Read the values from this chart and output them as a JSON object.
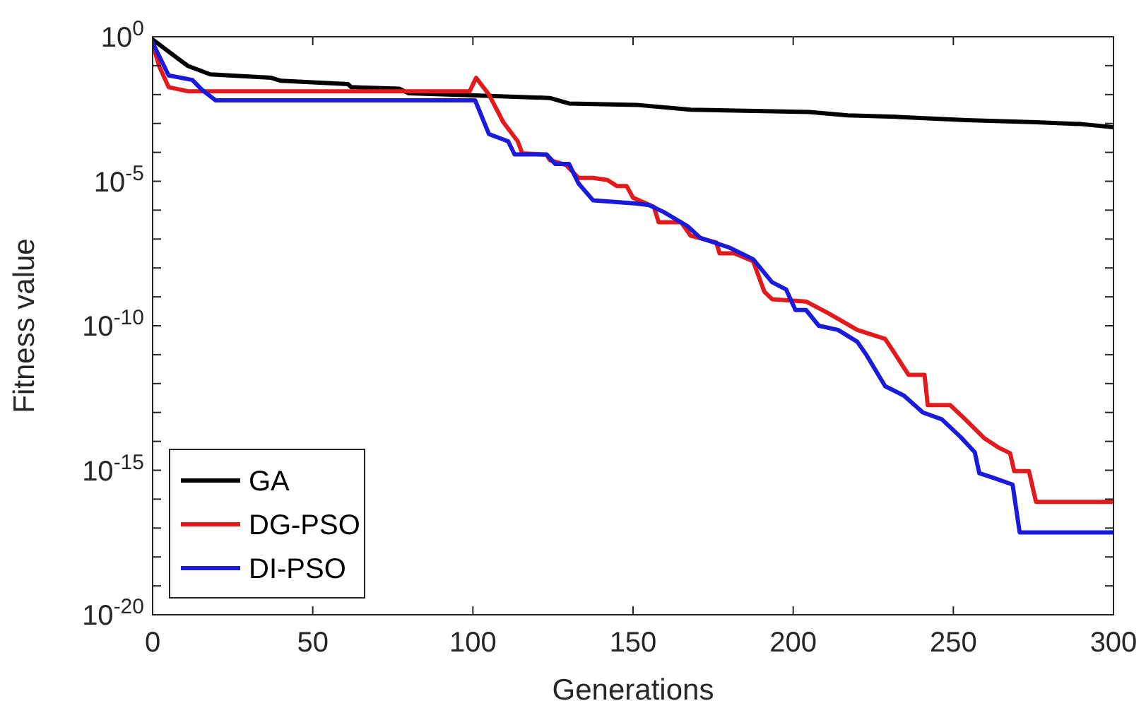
{
  "chart_data": {
    "type": "line",
    "xlabel": "Generations",
    "ylabel": "Fitness value",
    "log": "y",
    "xlim": [
      0,
      300
    ],
    "ylim": [
      1e-20,
      1
    ],
    "xticks": [
      0,
      50,
      100,
      150,
      200,
      250,
      300
    ],
    "yticks": [
      {
        "value": 1,
        "label": "10$^{0}$"
      },
      {
        "value": 0.1,
        "label": null
      },
      {
        "value": 0.01,
        "label": null
      },
      {
        "value": 0.001,
        "label": null
      },
      {
        "value": 0.0001,
        "label": null
      },
      {
        "value": 1e-05,
        "label": "10$^{-5}$"
      },
      {
        "value": 1e-06,
        "label": null
      },
      {
        "value": 1e-07,
        "label": null
      },
      {
        "value": 1e-08,
        "label": null
      },
      {
        "value": 1e-09,
        "label": null
      },
      {
        "value": 1e-10,
        "label": "10$^{-10}$"
      },
      {
        "value": 1e-11,
        "label": null
      },
      {
        "value": 1e-12,
        "label": null
      },
      {
        "value": 1e-13,
        "label": null
      },
      {
        "value": 1e-14,
        "label": null
      },
      {
        "value": 1e-15,
        "label": "10$^{-15}$"
      },
      {
        "value": 1e-16,
        "label": null
      },
      {
        "value": 1e-17,
        "label": null
      },
      {
        "value": 1e-18,
        "label": null
      },
      {
        "value": 1e-19,
        "label": null
      },
      {
        "value": 1e-20,
        "label": "10$^{-20}$"
      }
    ],
    "grid": false,
    "legend": "bottom left",
    "line_style": "solid",
    "series": [
      {
        "name": "GA",
        "color": "#000000",
        "x": [
          0,
          11,
          18,
          37,
          40,
          61,
          62,
          77,
          80,
          99,
          124,
          130,
          151,
          168,
          205,
          217,
          232,
          254,
          276,
          290,
          300
        ],
        "values": [
          0.8,
          0.098,
          0.05,
          0.038,
          0.03,
          0.023,
          0.018,
          0.016,
          0.011,
          0.0095,
          0.0076,
          0.0049,
          0.0044,
          0.003,
          0.0025,
          0.0019,
          0.0017,
          0.0013,
          0.0011,
          0.00095,
          0.00074
        ]
      },
      {
        "name": "DG-PSO",
        "color": "#e31a1c",
        "x": [
          0,
          2,
          5,
          11,
          99,
          101,
          105,
          109.5,
          114,
          115.4,
          123,
          124,
          129,
          133,
          137.5,
          142,
          145,
          148,
          150,
          156.5,
          158,
          165,
          168,
          176,
          177,
          181.6,
          187.5,
          191,
          193.4,
          204,
          211,
          220,
          228.7,
          231.7,
          236,
          241,
          242,
          249,
          253.7,
          259.6,
          264,
          267.7,
          269,
          273.6,
          275.8,
          300
        ],
        "values": [
          0.6,
          0.098,
          0.018,
          0.013,
          0.013,
          0.038,
          0.01,
          0.0011,
          0.00024,
          9.3e-05,
          8.3e-05,
          5.4e-05,
          3.7e-05,
          1.3e-05,
          1.3e-05,
          1.1e-05,
          6.8e-06,
          6.8e-06,
          2.7e-06,
          1.3e-06,
          3.8e-07,
          3.8e-07,
          1.3e-07,
          7.6e-08,
          3.2e-08,
          3.2e-08,
          1.7e-08,
          1.5e-09,
          8.3e-10,
          6.9e-10,
          2.7e-10,
          7.2e-11,
          3.5e-11,
          1.1e-11,
          2e-12,
          2e-12,
          1.8e-13,
          1.8e-13,
          5.8e-14,
          1.3e-14,
          6.2e-15,
          3.9e-15,
          9.3e-16,
          9.3e-16,
          8.1e-17,
          8.1e-17
        ]
      },
      {
        "name": "DI-PSO",
        "color": "#1a1adc",
        "x": [
          0,
          5,
          12.4,
          15.3,
          19.7,
          100.7,
          105,
          111,
          113,
          123,
          125.7,
          130,
          133,
          137.5,
          151,
          155,
          159.5,
          167,
          171,
          180,
          187.5,
          193.4,
          197.8,
          200.7,
          204,
          208,
          214,
          220,
          222.8,
          228.7,
          234.6,
          240.5,
          246.4,
          252.3,
          256.7,
          258.1,
          262.6,
          268.5,
          270.7,
          300
        ],
        "values": [
          0.63,
          0.046,
          0.032,
          0.015,
          0.0063,
          0.0063,
          0.00043,
          0.00024,
          8.5e-05,
          8.5e-05,
          4e-05,
          4e-05,
          8.3e-06,
          2.2e-06,
          1.7e-06,
          1.5e-06,
          8.7e-07,
          2.8e-07,
          1.1e-07,
          5.1e-08,
          2e-08,
          3.2e-09,
          1.8e-09,
          3.5e-10,
          3.5e-10,
          1e-10,
          7.2e-11,
          2.8e-11,
          1e-11,
          8.1e-13,
          3.8e-13,
          1e-13,
          5.8e-14,
          1.4e-14,
          4.2e-15,
          7.9e-16,
          5.4e-16,
          3.2e-16,
          7.1e-18,
          7.1e-18
        ]
      }
    ]
  }
}
